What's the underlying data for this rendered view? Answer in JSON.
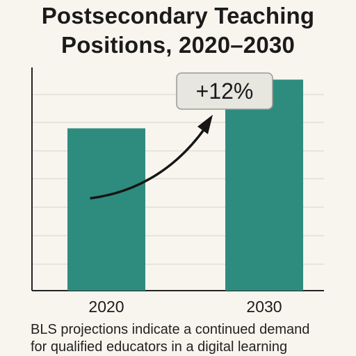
{
  "title": [
    "Postsecondary Teaching",
    "Positions, 2020–2030"
  ],
  "annotation": "+12%",
  "caption": [
    "BLS projections indicate a continued demand",
    "for qualified educators in a digital learning"
  ],
  "colors": {
    "bar": "#2e8c7f",
    "background": "#f8f5ee",
    "axis": "#222222",
    "grid": "#dcdad3",
    "badge_fill": "#e7e6df",
    "badge_stroke": "#9a9a94"
  },
  "chart_data": {
    "type": "bar",
    "title": "Postsecondary Teaching Positions, 2020–2030",
    "categories": [
      "2020",
      "2030"
    ],
    "values": [
      100,
      112
    ],
    "ylim": [
      60,
      115
    ],
    "grid": true,
    "annotation": {
      "text": "+12%",
      "from": "2020",
      "to": "2030"
    }
  }
}
